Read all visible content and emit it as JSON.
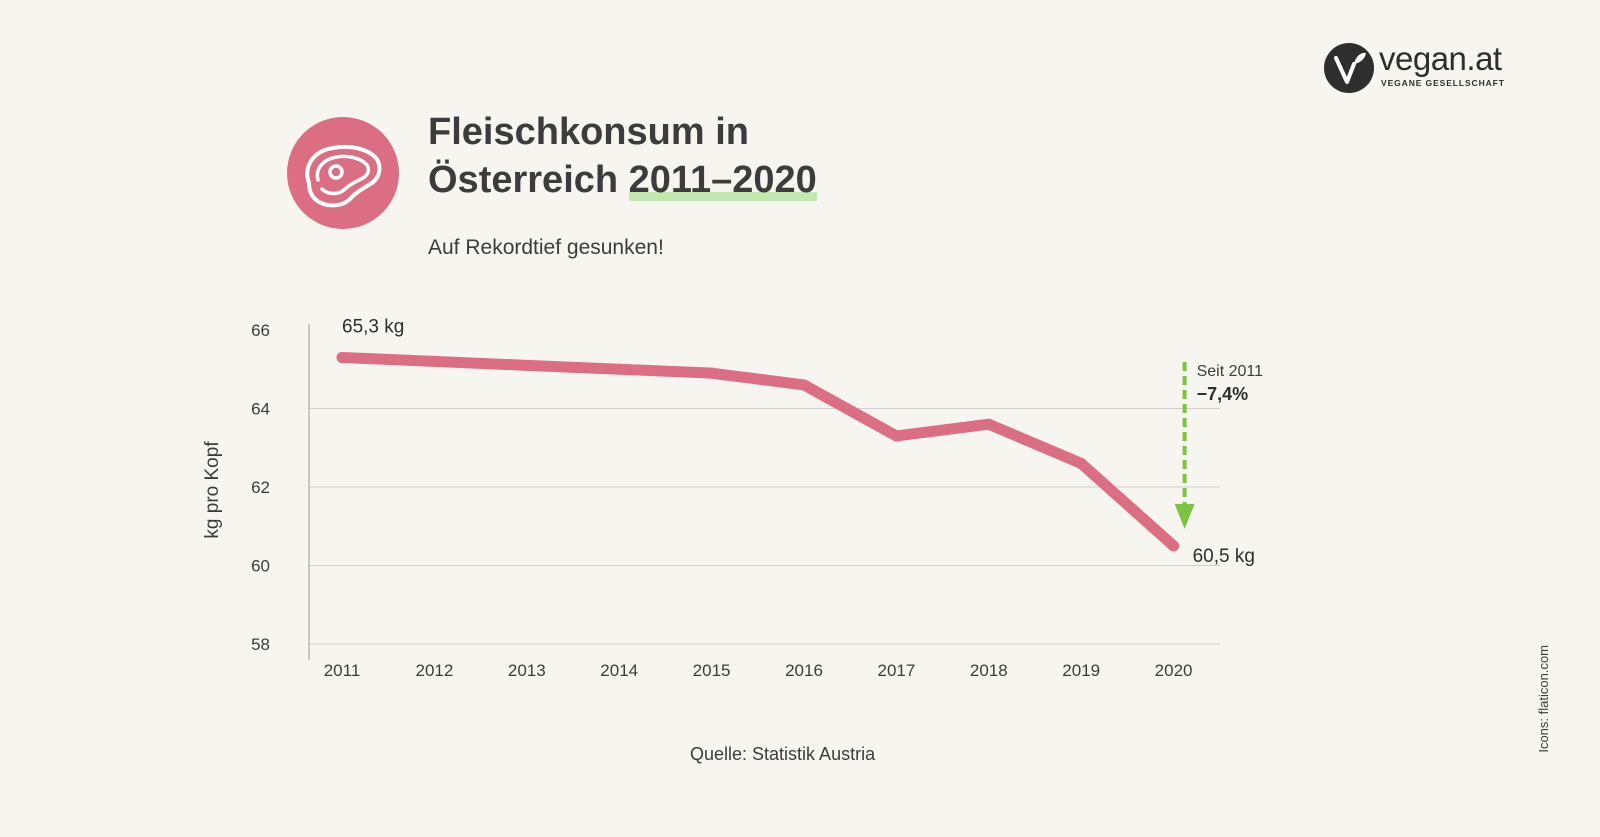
{
  "brand": {
    "name": "vegan.at",
    "tagline": "VEGANE GESELLSCHAFT"
  },
  "header": {
    "title_line1": "Fleischkonsum in",
    "title_line2_prefix": "Österreich ",
    "title_line2_highlight": "2011–2020",
    "subtitle": "Auf Rekordtief gesunken!",
    "icon": "meat-steak-icon"
  },
  "chart_data": {
    "type": "line",
    "title": "Fleischkonsum in Österreich 2011–2020",
    "subtitle": "Auf Rekordtief gesunken!",
    "xlabel": "",
    "ylabel": "kg pro Kopf",
    "categories": [
      "2011",
      "2012",
      "2013",
      "2014",
      "2015",
      "2016",
      "2017",
      "2018",
      "2019",
      "2020"
    ],
    "series": [
      {
        "values": [
          65.3,
          65.2,
          65.1,
          65.0,
          64.9,
          64.6,
          63.3,
          63.6,
          62.6,
          60.5
        ]
      }
    ],
    "ylim": [
      58,
      66
    ],
    "yticks": [
      58,
      60,
      62,
      64,
      66
    ],
    "grid": "horizontal",
    "annotations": {
      "start_label": "65,3 kg",
      "end_label": "60,5 kg",
      "change_caption": "Seit 2011",
      "change_value": "−7,4%"
    }
  },
  "footer": {
    "source": "Quelle: Statistik Austria",
    "icon_credit": "Icons: flaticon.com"
  },
  "colors": {
    "background": "#f7f5f0",
    "line": "#dc6e84",
    "accent_green": "#7dc242",
    "highlight_green": "#c4e6b0",
    "text": "#3c3c3c",
    "grid": "#cfcfcf"
  }
}
